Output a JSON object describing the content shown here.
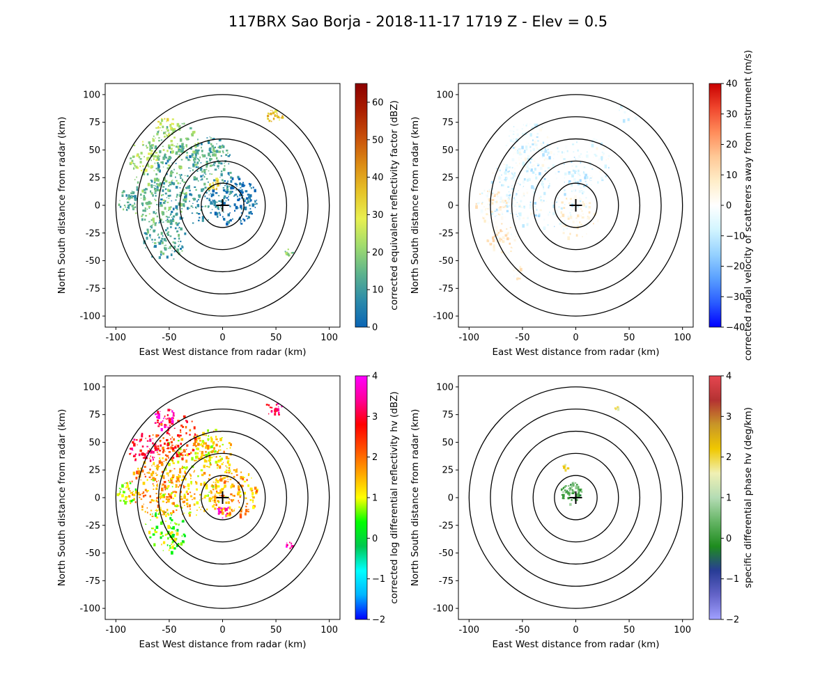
{
  "figure": {
    "title": "117BRX Sao Borja - 2018-11-17 1719 Z -  Elev = 0.5"
  },
  "colors": {
    "range_rings": "#000000",
    "background": "#ffffff"
  },
  "chart_data": [
    {
      "type": "heatmap",
      "panel": "top-left",
      "field": "corrected equivalent reflectivity factor",
      "xlabel": "East West distance from radar (km)",
      "ylabel": "North South distance from radar (km)",
      "xlim": [
        -110,
        110
      ],
      "ylim": [
        -110,
        110
      ],
      "xticks": [
        -100,
        -50,
        0,
        50,
        100
      ],
      "yticks": [
        100,
        75,
        50,
        25,
        0,
        -25,
        -50,
        -75,
        -100
      ],
      "range_rings_km": [
        20,
        40,
        60,
        80,
        100
      ],
      "radar_location": [
        0,
        0
      ],
      "colorbar": {
        "label": "corrected equivalent reflectivity factor (dBZ)",
        "vmin": 0,
        "vmax": 65,
        "ticks": [
          0,
          10,
          20,
          30,
          40,
          50,
          60
        ],
        "colormap": "pyart_HomeyerRainbow",
        "stops": [
          "#0a64b4",
          "#2d8caa",
          "#5fb48c",
          "#a0dc6e",
          "#e8f050",
          "#e6c328",
          "#dc8c14",
          "#c8500a",
          "#aa1e00",
          "#8c0000"
        ]
      },
      "echo_coverage": "widespread echoes west and north of radar, mostly 5-30 dBZ, cells up to ~40 dBZ near (-40,70) and (40,85)"
    },
    {
      "type": "heatmap",
      "panel": "top-right",
      "field": "corrected radial velocity of scatterers away from instrument",
      "xlabel": "East West distance from radar (km)",
      "ylabel": "North South distance from radar (km)",
      "xlim": [
        -110,
        110
      ],
      "ylim": [
        -110,
        110
      ],
      "xticks": [
        -100,
        -50,
        0,
        50,
        100
      ],
      "yticks": [
        100,
        75,
        50,
        25,
        0,
        -25,
        -50,
        -75,
        -100
      ],
      "range_rings_km": [
        20,
        40,
        60,
        80,
        100
      ],
      "radar_location": [
        0,
        0
      ],
      "colorbar": {
        "label": "corrected radial velocity of scatterers away from instrument (m/s)",
        "vmin": -40,
        "vmax": 40,
        "ticks": [
          -40,
          -30,
          -20,
          -10,
          0,
          10,
          20,
          30,
          40
        ],
        "colormap": "pyart_BuDRd18",
        "stops": [
          "#0000ff",
          "#2a5cff",
          "#5aa0ff",
          "#96d2ff",
          "#d2f5ff",
          "#ffffff",
          "#ffedc8",
          "#ffc896",
          "#ff8c5a",
          "#f0462d",
          "#c80000"
        ]
      },
      "echo_coverage": "mostly weak velocities -10 to +10 m/s, pale cyan to pale yellow"
    },
    {
      "type": "heatmap",
      "panel": "bottom-left",
      "field": "corrected log differential reflectivity hv",
      "xlabel": "East West distance from radar (km)",
      "ylabel": "North South distance from radar (km)",
      "xlim": [
        -110,
        110
      ],
      "ylim": [
        -110,
        110
      ],
      "xticks": [
        -100,
        -50,
        0,
        50,
        100
      ],
      "yticks": [
        100,
        75,
        50,
        25,
        0,
        -25,
        -50,
        -75,
        -100
      ],
      "range_rings_km": [
        20,
        40,
        60,
        80,
        100
      ],
      "radar_location": [
        0,
        0
      ],
      "colorbar": {
        "label": "corrected log differential reflectivity hv (dBZ)",
        "vmin": -2,
        "vmax": 4,
        "ticks": [
          -2,
          -1,
          0,
          1,
          2,
          3,
          4
        ],
        "colormap": "pyart_RefDiff",
        "stops": [
          "#0000ff",
          "#00b4ff",
          "#00ffff",
          "#00c850",
          "#00ff00",
          "#ffff00",
          "#ffa500",
          "#ff5000",
          "#ff0000",
          "#ff0096",
          "#ff00ff"
        ]
      },
      "echo_coverage": "values mostly 0.5-3.5 dB, noisy, same footprint as reflectivity"
    },
    {
      "type": "heatmap",
      "panel": "bottom-right",
      "field": "specific differential phase hv",
      "xlabel": "East West distance from radar (km)",
      "ylabel": "North South distance from radar (km)",
      "xlim": [
        -110,
        110
      ],
      "ylim": [
        -110,
        110
      ],
      "xticks": [
        -100,
        -50,
        0,
        50,
        100
      ],
      "yticks": [
        100,
        75,
        50,
        25,
        0,
        -25,
        -50,
        -75,
        -100
      ],
      "range_rings_km": [
        20,
        40,
        60,
        80,
        100
      ],
      "radar_location": [
        0,
        0
      ],
      "colorbar": {
        "label": "specific differential phase hv (deg/km)",
        "vmin": -2,
        "vmax": 4,
        "ticks": [
          -2,
          -1,
          0,
          1,
          2,
          3,
          4
        ],
        "colormap": "pyart_Theodore16",
        "stops": [
          "#a0a0ff",
          "#6464c8",
          "#283c96",
          "#1e8c1e",
          "#64b464",
          "#b4dcb4",
          "#f0f0b4",
          "#f0c800",
          "#c89628",
          "#b43232",
          "#e64650"
        ]
      },
      "echo_coverage": "small area near radar with values ~0-0.5 deg/km, small cell near (-10,28) and (38,82)"
    }
  ]
}
